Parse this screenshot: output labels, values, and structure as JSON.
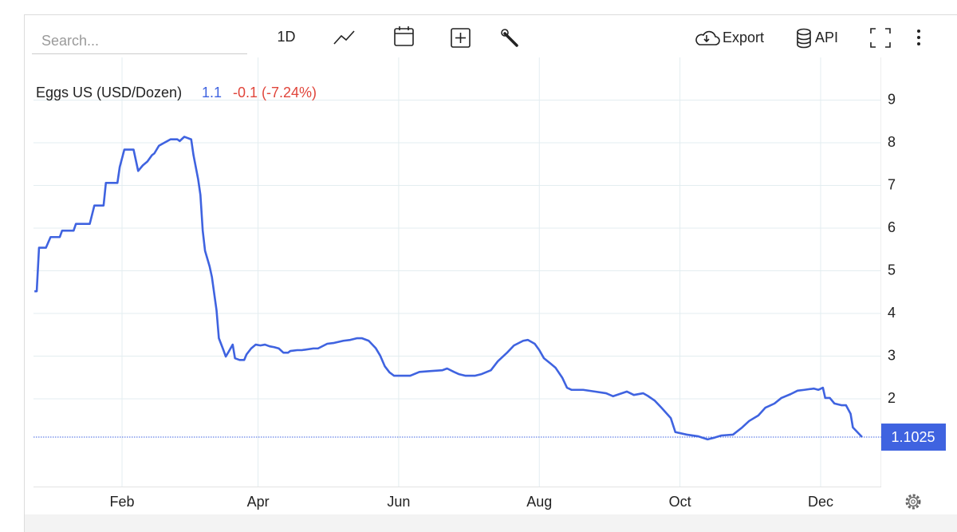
{
  "toolbar": {
    "search_placeholder": "Search...",
    "interval": "1D",
    "export": "Export",
    "api": "API"
  },
  "chart_data": {
    "type": "line",
    "series": [
      {
        "name": "Eggs US (USD/Dozen)",
        "color": "#3f63e0",
        "x": [
          -6,
          -5,
          -4,
          -1,
          1,
          5,
          6,
          11,
          12,
          18,
          20,
          24,
          25,
          30,
          31,
          33,
          37,
          39,
          41,
          43,
          45,
          46,
          48,
          50,
          53,
          56,
          57,
          59,
          60,
          62,
          63,
          65,
          66,
          67,
          68,
          70,
          71,
          73,
          74,
          76,
          77,
          78,
          80,
          81,
          83,
          85,
          86,
          88,
          90,
          92,
          94,
          96,
          98,
          100,
          102,
          104,
          105,
          108,
          110,
          115,
          117,
          121,
          124,
          128,
          131,
          134,
          136,
          139,
          142,
          144,
          146,
          148,
          150,
          155,
          157,
          161,
          166,
          171,
          173,
          176,
          178,
          181,
          185,
          188,
          192,
          195,
          199,
          202,
          206,
          208,
          211,
          213,
          215,
          218,
          220,
          223,
          225,
          227,
          232,
          237,
          242,
          245,
          251,
          254,
          258,
          260,
          263,
          266,
          270,
          272,
          277,
          282,
          286,
          289,
          292,
          297,
          301,
          304,
          308,
          311,
          315,
          318,
          322,
          325,
          328,
          332,
          334,
          336,
          337,
          339,
          341,
          344,
          346,
          348,
          349,
          353
        ],
        "values": [
          4.52,
          4.52,
          5.54,
          5.54,
          5.79,
          5.79,
          5.94,
          5.94,
          6.1,
          6.1,
          6.53,
          6.53,
          7.06,
          7.06,
          7.43,
          7.84,
          7.84,
          7.34,
          7.47,
          7.56,
          7.71,
          7.75,
          7.93,
          7.99,
          8.08,
          8.08,
          8.04,
          8.14,
          8.12,
          8.08,
          7.71,
          7.15,
          6.78,
          5.94,
          5.47,
          5.1,
          4.85,
          4.07,
          3.42,
          3.14,
          2.99,
          3.08,
          3.27,
          2.95,
          2.91,
          2.91,
          3.04,
          3.18,
          3.27,
          3.25,
          3.27,
          3.23,
          3.21,
          3.18,
          3.08,
          3.08,
          3.12,
          3.14,
          3.14,
          3.18,
          3.18,
          3.29,
          3.31,
          3.36,
          3.38,
          3.42,
          3.42,
          3.36,
          3.19,
          3.01,
          2.76,
          2.62,
          2.54,
          2.54,
          2.54,
          2.63,
          2.65,
          2.67,
          2.71,
          2.63,
          2.58,
          2.54,
          2.54,
          2.58,
          2.67,
          2.88,
          3.08,
          3.25,
          3.36,
          3.38,
          3.29,
          3.14,
          2.95,
          2.82,
          2.73,
          2.49,
          2.26,
          2.21,
          2.21,
          2.17,
          2.13,
          2.06,
          2.17,
          2.09,
          2.13,
          2.07,
          1.96,
          1.79,
          1.55,
          1.22,
          1.16,
          1.12,
          1.05,
          1.09,
          1.14,
          1.16,
          1.33,
          1.48,
          1.61,
          1.79,
          1.89,
          2.02,
          2.11,
          2.19,
          2.21,
          2.24,
          2.21,
          2.26,
          2.02,
          2.02,
          1.89,
          1.85,
          1.85,
          1.65,
          1.33,
          1.1025
        ]
      }
    ],
    "last_label": "1.1",
    "change_label": "-0.1 (-7.24%)",
    "change_color": "#e0453b",
    "xlim": [
      -6.4,
      361.3
    ],
    "xticks": [
      {
        "value": 32,
        "label": "Feb"
      },
      {
        "value": 91,
        "label": "Apr"
      },
      {
        "value": 152,
        "label": "Jun"
      },
      {
        "value": 213,
        "label": "Aug"
      },
      {
        "value": 274,
        "label": "Oct"
      },
      {
        "value": 335,
        "label": "Dec"
      }
    ],
    "ylim": [
      0,
      10
    ],
    "yticks": [
      2,
      3,
      4,
      5,
      6,
      7,
      8,
      9
    ],
    "grid": true
  }
}
